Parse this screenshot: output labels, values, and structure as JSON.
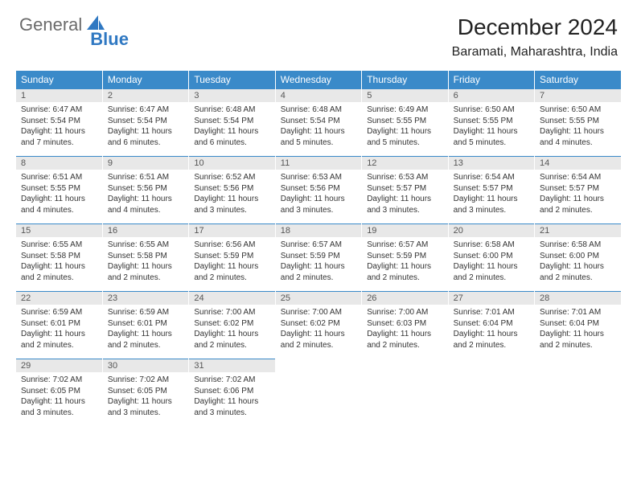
{
  "brand": {
    "part1": "General",
    "part2": "Blue"
  },
  "title": "December 2024",
  "location": "Baramati, Maharashtra, India",
  "colors": {
    "header_bg": "#3a8ac9",
    "header_text": "#ffffff",
    "daynum_bg": "#e8e8e8",
    "daynum_text": "#555555",
    "body_text": "#333333",
    "rule": "#3a8ac9",
    "brand_gray": "#6b6b6b",
    "brand_blue": "#2f78c2",
    "page_bg": "#ffffff"
  },
  "typography": {
    "title_fontsize": 28,
    "location_fontsize": 16,
    "header_fontsize": 12,
    "daynum_fontsize": 11,
    "cell_fontsize": 10
  },
  "day_headers": [
    "Sunday",
    "Monday",
    "Tuesday",
    "Wednesday",
    "Thursday",
    "Friday",
    "Saturday"
  ],
  "weeks": [
    [
      {
        "n": "1",
        "sr": "Sunrise: 6:47 AM",
        "ss": "Sunset: 5:54 PM",
        "dl": "Daylight: 11 hours and 7 minutes."
      },
      {
        "n": "2",
        "sr": "Sunrise: 6:47 AM",
        "ss": "Sunset: 5:54 PM",
        "dl": "Daylight: 11 hours and 6 minutes."
      },
      {
        "n": "3",
        "sr": "Sunrise: 6:48 AM",
        "ss": "Sunset: 5:54 PM",
        "dl": "Daylight: 11 hours and 6 minutes."
      },
      {
        "n": "4",
        "sr": "Sunrise: 6:48 AM",
        "ss": "Sunset: 5:54 PM",
        "dl": "Daylight: 11 hours and 5 minutes."
      },
      {
        "n": "5",
        "sr": "Sunrise: 6:49 AM",
        "ss": "Sunset: 5:55 PM",
        "dl": "Daylight: 11 hours and 5 minutes."
      },
      {
        "n": "6",
        "sr": "Sunrise: 6:50 AM",
        "ss": "Sunset: 5:55 PM",
        "dl": "Daylight: 11 hours and 5 minutes."
      },
      {
        "n": "7",
        "sr": "Sunrise: 6:50 AM",
        "ss": "Sunset: 5:55 PM",
        "dl": "Daylight: 11 hours and 4 minutes."
      }
    ],
    [
      {
        "n": "8",
        "sr": "Sunrise: 6:51 AM",
        "ss": "Sunset: 5:55 PM",
        "dl": "Daylight: 11 hours and 4 minutes."
      },
      {
        "n": "9",
        "sr": "Sunrise: 6:51 AM",
        "ss": "Sunset: 5:56 PM",
        "dl": "Daylight: 11 hours and 4 minutes."
      },
      {
        "n": "10",
        "sr": "Sunrise: 6:52 AM",
        "ss": "Sunset: 5:56 PM",
        "dl": "Daylight: 11 hours and 3 minutes."
      },
      {
        "n": "11",
        "sr": "Sunrise: 6:53 AM",
        "ss": "Sunset: 5:56 PM",
        "dl": "Daylight: 11 hours and 3 minutes."
      },
      {
        "n": "12",
        "sr": "Sunrise: 6:53 AM",
        "ss": "Sunset: 5:57 PM",
        "dl": "Daylight: 11 hours and 3 minutes."
      },
      {
        "n": "13",
        "sr": "Sunrise: 6:54 AM",
        "ss": "Sunset: 5:57 PM",
        "dl": "Daylight: 11 hours and 3 minutes."
      },
      {
        "n": "14",
        "sr": "Sunrise: 6:54 AM",
        "ss": "Sunset: 5:57 PM",
        "dl": "Daylight: 11 hours and 2 minutes."
      }
    ],
    [
      {
        "n": "15",
        "sr": "Sunrise: 6:55 AM",
        "ss": "Sunset: 5:58 PM",
        "dl": "Daylight: 11 hours and 2 minutes."
      },
      {
        "n": "16",
        "sr": "Sunrise: 6:55 AM",
        "ss": "Sunset: 5:58 PM",
        "dl": "Daylight: 11 hours and 2 minutes."
      },
      {
        "n": "17",
        "sr": "Sunrise: 6:56 AM",
        "ss": "Sunset: 5:59 PM",
        "dl": "Daylight: 11 hours and 2 minutes."
      },
      {
        "n": "18",
        "sr": "Sunrise: 6:57 AM",
        "ss": "Sunset: 5:59 PM",
        "dl": "Daylight: 11 hours and 2 minutes."
      },
      {
        "n": "19",
        "sr": "Sunrise: 6:57 AM",
        "ss": "Sunset: 5:59 PM",
        "dl": "Daylight: 11 hours and 2 minutes."
      },
      {
        "n": "20",
        "sr": "Sunrise: 6:58 AM",
        "ss": "Sunset: 6:00 PM",
        "dl": "Daylight: 11 hours and 2 minutes."
      },
      {
        "n": "21",
        "sr": "Sunrise: 6:58 AM",
        "ss": "Sunset: 6:00 PM",
        "dl": "Daylight: 11 hours and 2 minutes."
      }
    ],
    [
      {
        "n": "22",
        "sr": "Sunrise: 6:59 AM",
        "ss": "Sunset: 6:01 PM",
        "dl": "Daylight: 11 hours and 2 minutes."
      },
      {
        "n": "23",
        "sr": "Sunrise: 6:59 AM",
        "ss": "Sunset: 6:01 PM",
        "dl": "Daylight: 11 hours and 2 minutes."
      },
      {
        "n": "24",
        "sr": "Sunrise: 7:00 AM",
        "ss": "Sunset: 6:02 PM",
        "dl": "Daylight: 11 hours and 2 minutes."
      },
      {
        "n": "25",
        "sr": "Sunrise: 7:00 AM",
        "ss": "Sunset: 6:02 PM",
        "dl": "Daylight: 11 hours and 2 minutes."
      },
      {
        "n": "26",
        "sr": "Sunrise: 7:00 AM",
        "ss": "Sunset: 6:03 PM",
        "dl": "Daylight: 11 hours and 2 minutes."
      },
      {
        "n": "27",
        "sr": "Sunrise: 7:01 AM",
        "ss": "Sunset: 6:04 PM",
        "dl": "Daylight: 11 hours and 2 minutes."
      },
      {
        "n": "28",
        "sr": "Sunrise: 7:01 AM",
        "ss": "Sunset: 6:04 PM",
        "dl": "Daylight: 11 hours and 2 minutes."
      }
    ],
    [
      {
        "n": "29",
        "sr": "Sunrise: 7:02 AM",
        "ss": "Sunset: 6:05 PM",
        "dl": "Daylight: 11 hours and 3 minutes."
      },
      {
        "n": "30",
        "sr": "Sunrise: 7:02 AM",
        "ss": "Sunset: 6:05 PM",
        "dl": "Daylight: 11 hours and 3 minutes."
      },
      {
        "n": "31",
        "sr": "Sunrise: 7:02 AM",
        "ss": "Sunset: 6:06 PM",
        "dl": "Daylight: 11 hours and 3 minutes."
      },
      {
        "empty": true
      },
      {
        "empty": true
      },
      {
        "empty": true
      },
      {
        "empty": true
      }
    ]
  ]
}
